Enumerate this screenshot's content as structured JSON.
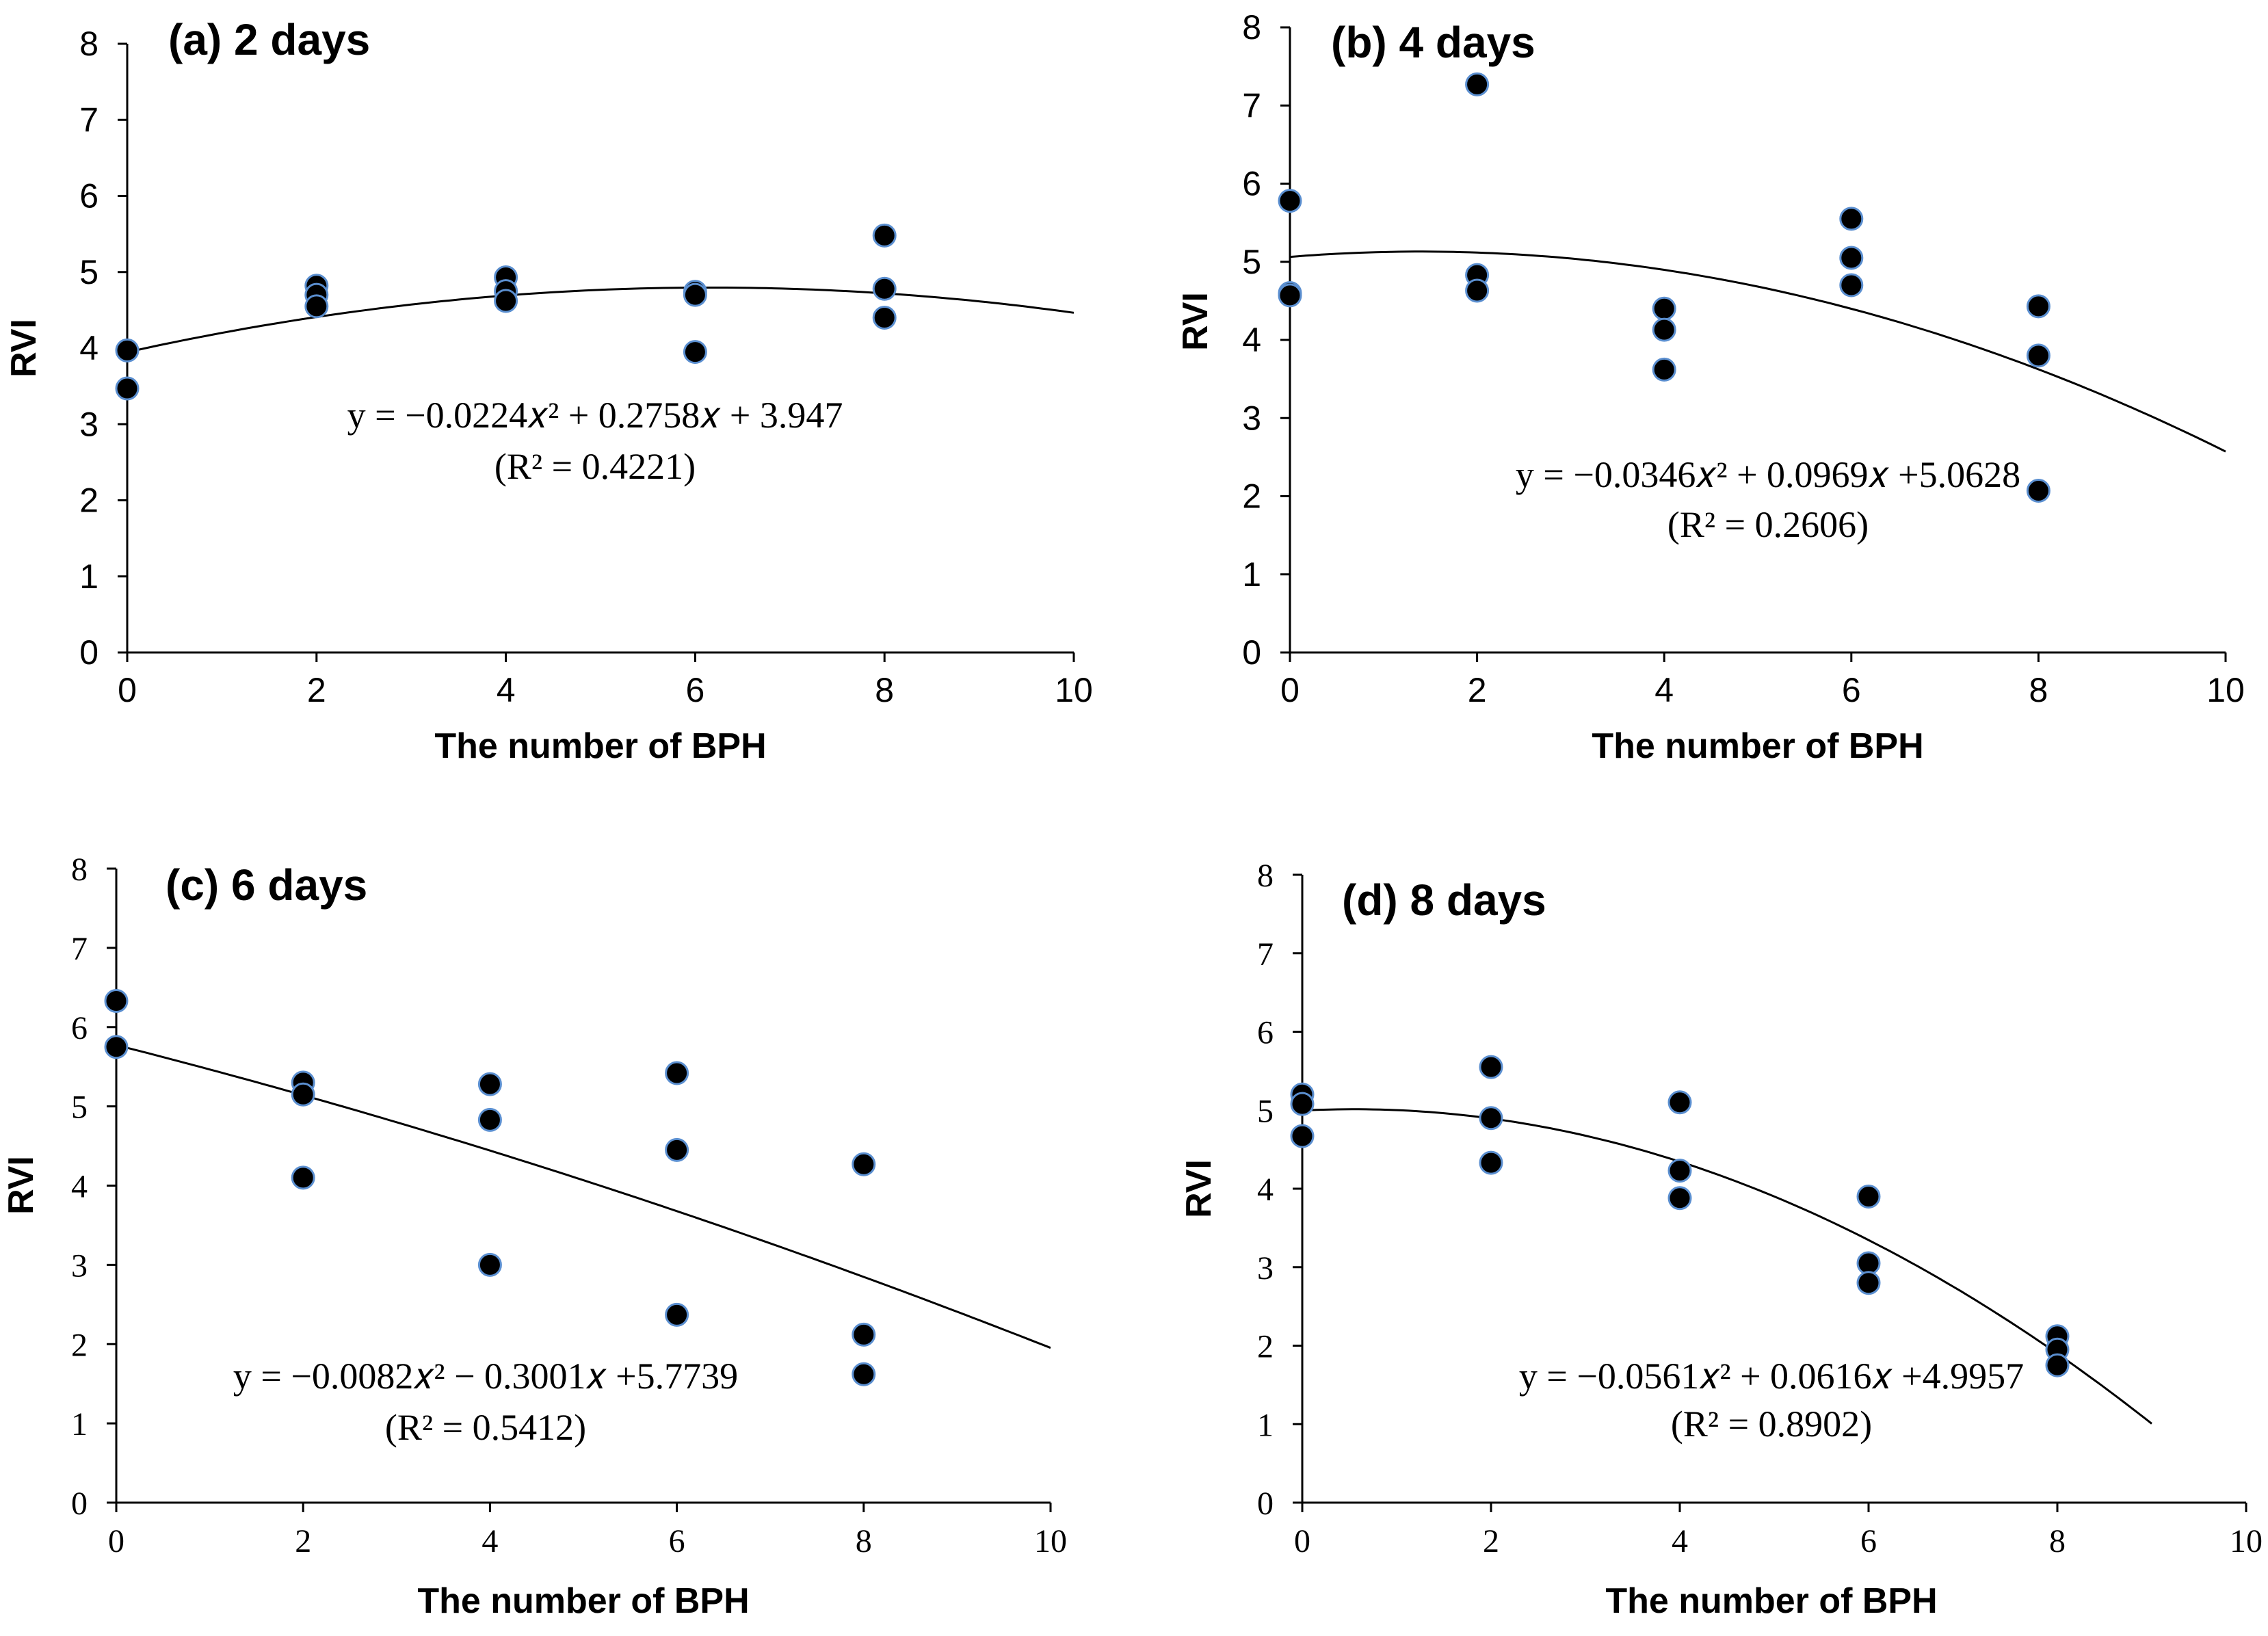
{
  "colors": {
    "marker_fill": "#000000",
    "marker_edge": "#5b8fd0",
    "line": "#000000",
    "background": "#ffffff"
  },
  "chart_data": [
    {
      "type": "scatter",
      "title": "(a) 2 days",
      "xlabel": "The number of BPH",
      "ylabel": "RVI",
      "xlim": [
        0,
        10
      ],
      "ylim": [
        0,
        8
      ],
      "xticks": [
        "0",
        "2",
        "4",
        "6",
        "8",
        "10"
      ],
      "yticks": [
        "0",
        "1",
        "2",
        "3",
        "4",
        "5",
        "6",
        "7",
        "8"
      ],
      "tick_font": "sans",
      "points": [
        [
          0,
          3.97
        ],
        [
          0,
          3.47
        ],
        [
          2,
          4.82
        ],
        [
          2,
          4.7
        ],
        [
          2,
          4.55
        ],
        [
          4,
          4.93
        ],
        [
          4,
          4.75
        ],
        [
          4,
          4.62
        ],
        [
          6,
          4.74
        ],
        [
          6,
          4.7
        ],
        [
          6,
          3.95
        ],
        [
          8,
          5.48
        ],
        [
          8,
          4.78
        ],
        [
          8,
          4.4
        ]
      ],
      "fit": {
        "a": -0.0224,
        "b": 0.2758,
        "c": 3.947,
        "xrange": [
          0,
          10
        ]
      },
      "equation": "y = −0.0224𝑥² + 0.2758𝑥 + 3.947",
      "r2": "(R² = 0.4221)"
    },
    {
      "type": "scatter",
      "title": "(b) 4 days",
      "xlabel": "The number of BPH",
      "ylabel": "RVI",
      "xlim": [
        0,
        10
      ],
      "ylim": [
        0,
        8
      ],
      "xticks": [
        "0",
        "2",
        "4",
        "6",
        "8",
        "10"
      ],
      "yticks": [
        "0",
        "1",
        "2",
        "3",
        "4",
        "5",
        "6",
        "7",
        "8"
      ],
      "tick_font": "sans",
      "points": [
        [
          0,
          5.78
        ],
        [
          0,
          4.6
        ],
        [
          0,
          4.57
        ],
        [
          2,
          7.27
        ],
        [
          2,
          4.83
        ],
        [
          2,
          4.63
        ],
        [
          4,
          4.4
        ],
        [
          4,
          4.13
        ],
        [
          4,
          3.62
        ],
        [
          6,
          5.55
        ],
        [
          6,
          5.05
        ],
        [
          6,
          4.7
        ],
        [
          8,
          4.43
        ],
        [
          8,
          3.8
        ],
        [
          8,
          2.07
        ]
      ],
      "fit": {
        "a": -0.0346,
        "b": 0.0969,
        "c": 5.0628,
        "xrange": [
          0,
          10
        ]
      },
      "equation": "y = −0.0346𝑥² + 0.0969𝑥 +5.0628",
      "r2": "(R² = 0.2606)"
    },
    {
      "type": "scatter",
      "title": "(c) 6 days",
      "xlabel": "The number of BPH",
      "ylabel": "RVI",
      "xlim": [
        0,
        10
      ],
      "ylim": [
        0,
        8
      ],
      "xticks": [
        "0",
        "2",
        "4",
        "6",
        "8",
        "10"
      ],
      "yticks": [
        "0",
        "1",
        "2",
        "3",
        "4",
        "5",
        "6",
        "7",
        "8"
      ],
      "tick_font": "serif",
      "points": [
        [
          0,
          6.33
        ],
        [
          0,
          5.75
        ],
        [
          2,
          5.3
        ],
        [
          2,
          5.15
        ],
        [
          2,
          4.1
        ],
        [
          4,
          5.28
        ],
        [
          4,
          4.83
        ],
        [
          4,
          3.0
        ],
        [
          6,
          5.42
        ],
        [
          6,
          4.45
        ],
        [
          6,
          2.37
        ],
        [
          8,
          4.27
        ],
        [
          8,
          2.12
        ],
        [
          8,
          1.62
        ]
      ],
      "fit": {
        "a": -0.0082,
        "b": -0.3001,
        "c": 5.7739,
        "xrange": [
          0,
          10
        ]
      },
      "equation": "y = −0.0082𝑥² − 0.3001𝑥 +5.7739",
      "r2": "(R² = 0.5412)"
    },
    {
      "type": "scatter",
      "title": "(d) 8 days",
      "xlabel": "The number of BPH",
      "ylabel": "RVI",
      "xlim": [
        0,
        10
      ],
      "ylim": [
        0,
        8
      ],
      "xticks": [
        "0",
        "2",
        "4",
        "6",
        "8",
        "10"
      ],
      "yticks": [
        "0",
        "1",
        "2",
        "3",
        "4",
        "5",
        "6",
        "7",
        "8"
      ],
      "tick_font": "serif",
      "points": [
        [
          0,
          5.2
        ],
        [
          0,
          5.08
        ],
        [
          0,
          4.67
        ],
        [
          2,
          5.55
        ],
        [
          2,
          4.9
        ],
        [
          2,
          4.33
        ],
        [
          4,
          5.1
        ],
        [
          4,
          4.23
        ],
        [
          4,
          3.88
        ],
        [
          6,
          3.9
        ],
        [
          6,
          3.05
        ],
        [
          6,
          2.8
        ],
        [
          8,
          2.12
        ],
        [
          8,
          1.95
        ],
        [
          8,
          1.75
        ]
      ],
      "fit": {
        "a": -0.0561,
        "b": 0.0616,
        "c": 4.9957,
        "xrange": [
          0,
          9
        ]
      },
      "equation": "y = −0.0561𝑥² + 0.0616𝑥 +4.9957",
      "r2": "(R² = 0.8902)"
    }
  ]
}
